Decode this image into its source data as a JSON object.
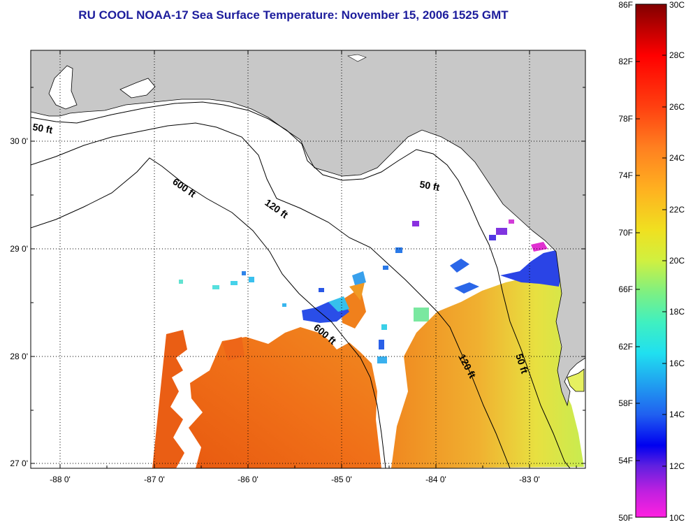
{
  "title": "RU COOL  NOAA-17  Sea Surface Temperature:  November 15, 2006 1525 GMT",
  "map": {
    "lon_ticks": [
      "-88 0'",
      "-87 0'",
      "-86 0'",
      "-85 0'",
      "-84 0'",
      "-83 0'"
    ],
    "lat_ticks": [
      "30 0'",
      "29 0'",
      "28 0'",
      "27 0'"
    ],
    "contour_labels": [
      "50 ft",
      "600 ft",
      "120 ft",
      "50 ft",
      "600 ft",
      "120 ft",
      "50 ft"
    ],
    "colors": {
      "land": "#c8c8c8",
      "no_data": "#ffffff",
      "grid": "#000000"
    }
  },
  "colorbar": {
    "fahrenheit_labels": [
      "86F",
      "82F",
      "78F",
      "74F",
      "70F",
      "66F",
      "62F",
      "58F",
      "54F",
      "50F"
    ],
    "celsius_labels": [
      "30C",
      "28C",
      "26C",
      "24C",
      "22C",
      "20C",
      "18C",
      "16C",
      "14C",
      "12C",
      "10C"
    ],
    "range_c": [
      10,
      30
    ],
    "range_f": [
      50,
      86
    ]
  }
}
